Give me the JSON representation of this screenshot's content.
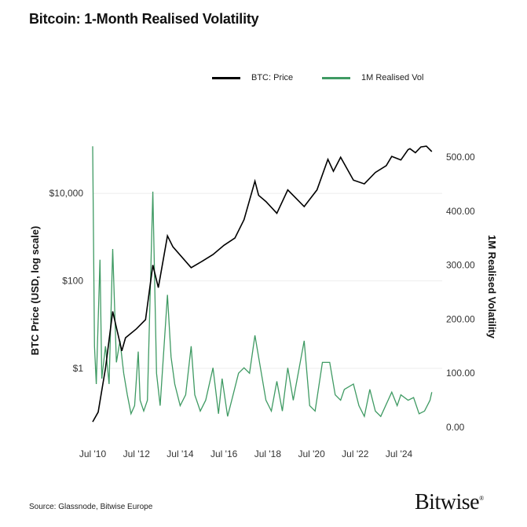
{
  "chart_data": {
    "type": "line",
    "title": "Bitcoin: 1-Month Realised Volatility",
    "legend_position": "top-right",
    "grid": "horizontal (faint)",
    "x_tick_labels": [
      "Jul '10",
      "Jul '12",
      "Jul '14",
      "Jul '16",
      "Jul '18",
      "Jul '20",
      "Jul '22",
      "Jul '24"
    ],
    "y_left": {
      "label": "BTC Price (USD, log scale)",
      "scale": "log",
      "tick_labels": [
        "$1",
        "$100",
        "$10,000"
      ],
      "ticks": [
        1,
        100,
        10000
      ],
      "range": [
        0.04,
        300000
      ]
    },
    "y_right": {
      "label": "1M Realised Volatility",
      "scale": "linear",
      "tick_labels": [
        "0.00",
        "100.00",
        "200.00",
        "300.00",
        "400.00",
        "500.00"
      ],
      "ticks": [
        0,
        100,
        200,
        300,
        400,
        500
      ],
      "range": [
        0,
        520
      ]
    },
    "series": [
      {
        "name": "BTC: Price",
        "axis": "left",
        "color": "#000000",
        "x": [
          "2010-07",
          "2010-10",
          "2011-02",
          "2011-06",
          "2011-11",
          "2012-01",
          "2012-07",
          "2012-12",
          "2013-04",
          "2013-07",
          "2013-12",
          "2014-03",
          "2015-01",
          "2015-07",
          "2016-01",
          "2016-07",
          "2017-01",
          "2017-06",
          "2017-12",
          "2018-02",
          "2018-06",
          "2018-12",
          "2019-06",
          "2020-03",
          "2020-10",
          "2021-04",
          "2021-07",
          "2021-11",
          "2022-06",
          "2022-12",
          "2023-06",
          "2023-12",
          "2024-03",
          "2024-08",
          "2024-12",
          "2025-01",
          "2025-04",
          "2025-07",
          "2025-10",
          "2026-01"
        ],
        "values": [
          0.06,
          0.1,
          1,
          20,
          2.5,
          5,
          8,
          13,
          230,
          70,
          1070,
          600,
          200,
          280,
          400,
          650,
          950,
          2500,
          19000,
          9000,
          6500,
          3500,
          12000,
          5000,
          12000,
          60000,
          32000,
          67000,
          20000,
          16500,
          30000,
          43000,
          70000,
          58000,
          100000,
          105000,
          85000,
          115000,
          120000,
          90000
        ]
      },
      {
        "name": "1M Realised Vol",
        "axis": "right",
        "color": "#3f9a63",
        "x": [
          "2010-07",
          "2010-08",
          "2010-09",
          "2010-11",
          "2010-12",
          "2011-02",
          "2011-04",
          "2011-06",
          "2011-08",
          "2011-10",
          "2011-12",
          "2012-02",
          "2012-04",
          "2012-06",
          "2012-08",
          "2012-09",
          "2012-11",
          "2013-01",
          "2013-04",
          "2013-06",
          "2013-08",
          "2013-12",
          "2014-02",
          "2014-04",
          "2014-07",
          "2014-10",
          "2015-01",
          "2015-03",
          "2015-06",
          "2015-09",
          "2016-01",
          "2016-04",
          "2016-06",
          "2016-09",
          "2016-12",
          "2017-03",
          "2017-06",
          "2017-09",
          "2017-12",
          "2018-03",
          "2018-06",
          "2018-09",
          "2018-12",
          "2019-03",
          "2019-06",
          "2019-09",
          "2020-03",
          "2020-06",
          "2020-09",
          "2021-01",
          "2021-05",
          "2021-08",
          "2021-11",
          "2022-01",
          "2022-06",
          "2022-09",
          "2022-12",
          "2023-03",
          "2023-06",
          "2023-09",
          "2024-03",
          "2024-06",
          "2024-08",
          "2024-12",
          "2025-03",
          "2025-06",
          "2025-09",
          "2025-12",
          "2026-01"
        ],
        "values": [
          520,
          150,
          80,
          310,
          90,
          150,
          80,
          330,
          120,
          160,
          100,
          60,
          25,
          40,
          140,
          50,
          30,
          50,
          436,
          100,
          40,
          245,
          130,
          80,
          40,
          60,
          150,
          60,
          30,
          50,
          110,
          25,
          90,
          20,
          60,
          100,
          110,
          100,
          170,
          110,
          50,
          30,
          85,
          30,
          110,
          50,
          160,
          40,
          30,
          120,
          120,
          60,
          50,
          70,
          80,
          40,
          20,
          70,
          30,
          20,
          65,
          40,
          60,
          50,
          55,
          25,
          30,
          50,
          65
        ]
      }
    ]
  },
  "footer": {
    "source": "Source: Glassnode, Bitwise Europe",
    "logo": "Bitwise"
  }
}
